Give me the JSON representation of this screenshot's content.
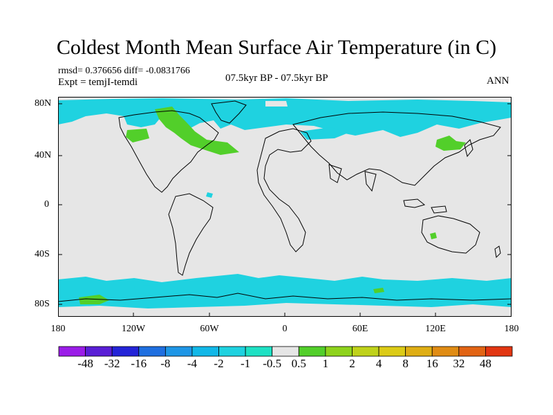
{
  "title": "Coldest Month Mean Surface Air Temperature (in C)",
  "stats_line": "rmsd= 0.376656 diff= -0.0831766",
  "experiment": "Expt = temjI-temdi",
  "period": "07.5kyr BP - 07.5kyr BP",
  "season": "ANN",
  "axes": {
    "y_ticks": [
      "80N",
      "40N",
      "0",
      "40S",
      "80S"
    ],
    "x_ticks": [
      "180",
      "120W",
      "60W",
      "0",
      "60E",
      "120E",
      "180"
    ]
  },
  "colorbar": {
    "colors": [
      "#9b1de8",
      "#5a1fd6",
      "#2424d8",
      "#1f6fe0",
      "#1e96e6",
      "#12b8e8",
      "#1fd2e0",
      "#1ee1c4",
      "#e6e6e6",
      "#52cf2a",
      "#8ed31c",
      "#bfd21a",
      "#dccb16",
      "#dfae14",
      "#e08c14",
      "#e26414",
      "#e23612"
    ],
    "labels": [
      "-48",
      "-32",
      "-16",
      "-8",
      "-4",
      "-2",
      "-1",
      "-0.5",
      "0.5",
      "1",
      "2",
      "4",
      "8",
      "16",
      "32",
      "48"
    ]
  },
  "colors": {
    "background_neutral": "#e6e6e6",
    "cyan_anomaly": "#1fd2e0",
    "green_anomaly": "#52cf2a"
  }
}
